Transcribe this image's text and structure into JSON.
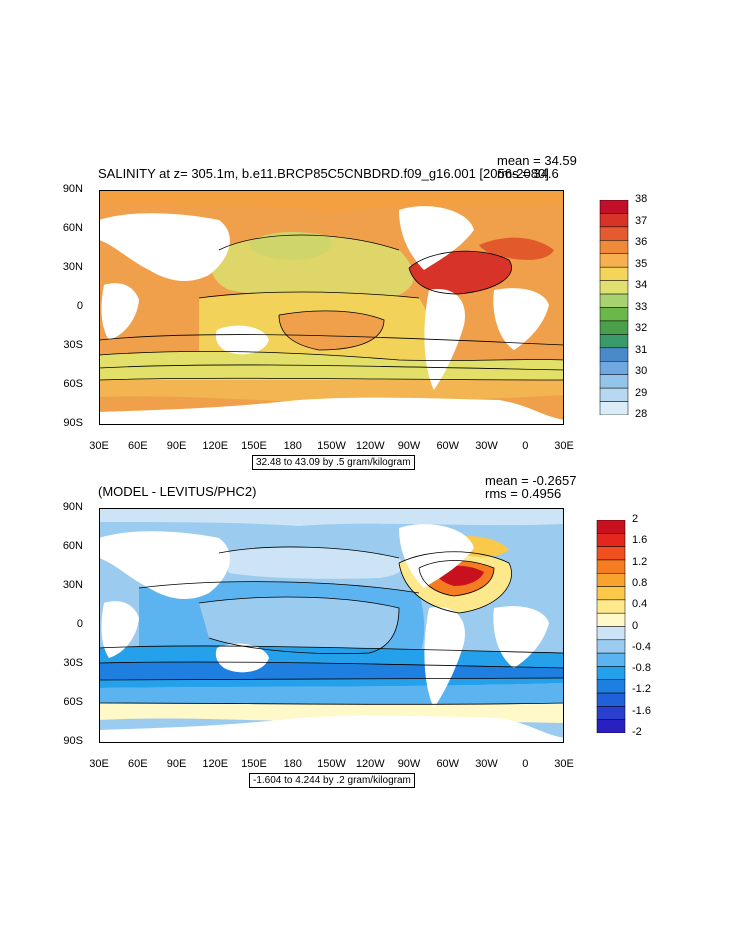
{
  "panels": [
    {
      "id": "top",
      "title": "SALINITY at z= 305.1m, b.e11.BRCP85C5CNBDRD.f09_g16.001 [2056-2080]",
      "mean_text": "mean = 34.59",
      "rms_text": "rms = 34.6",
      "info_text": "32.48 to 43.09 by .5 gram/kilogram",
      "y_ticks": [
        "90N",
        "60N",
        "30N",
        "0",
        "30S",
        "60S",
        "90S"
      ],
      "x_ticks": [
        "30E",
        "60E",
        "90E",
        "120E",
        "150E",
        "180",
        "150W",
        "120W",
        "90W",
        "60W",
        "30W",
        "0",
        "30E"
      ],
      "colorbar": {
        "labels": [
          "38",
          "37",
          "36",
          "35",
          "34",
          "33",
          "32",
          "31",
          "30",
          "29",
          "28"
        ],
        "colors": [
          "#c2102a",
          "#d73328",
          "#e55a2e",
          "#ef8a3a",
          "#f7b050",
          "#f5d45a",
          "#dfe070",
          "#a8d270",
          "#6ab84a",
          "#4aa04a",
          "#3a9a6a",
          "#4a8ac8",
          "#6fa8e0",
          "#94c4ea",
          "#b7d8f0",
          "#d9ecf8"
        ]
      }
    },
    {
      "id": "bottom",
      "title": "(MODEL - LEVITUS/PHC2)",
      "mean_text": "mean = -0.2657",
      "rms_text": "rms = 0.4956",
      "info_text": "-1.604 to 4.244 by .2 gram/kilogram",
      "y_ticks": [
        "90N",
        "60N",
        "30N",
        "0",
        "30S",
        "60S",
        "90S"
      ],
      "x_ticks": [
        "30E",
        "60E",
        "90E",
        "120E",
        "150E",
        "180",
        "150W",
        "120W",
        "90W",
        "60W",
        "30W",
        "0",
        "30E"
      ],
      "colorbar": {
        "labels": [
          "2",
          "1.6",
          "1.2",
          "0.8",
          "0.4",
          "0",
          "-0.4",
          "-0.8",
          "-1.2",
          "-1.6",
          "-2"
        ],
        "colors": [
          "#c8101e",
          "#e3261e",
          "#f05020",
          "#f57c20",
          "#f8a32e",
          "#fbc94a",
          "#fde88c",
          "#fff8c8",
          "#cde4f6",
          "#9bcbef",
          "#5bb4ef",
          "#25a0ea",
          "#1e7fe0",
          "#2060d8",
          "#2a3fd0",
          "#2a20c0"
        ]
      }
    }
  ],
  "color_legend": {
    "land": "#ffffff",
    "frame": "#000000"
  }
}
